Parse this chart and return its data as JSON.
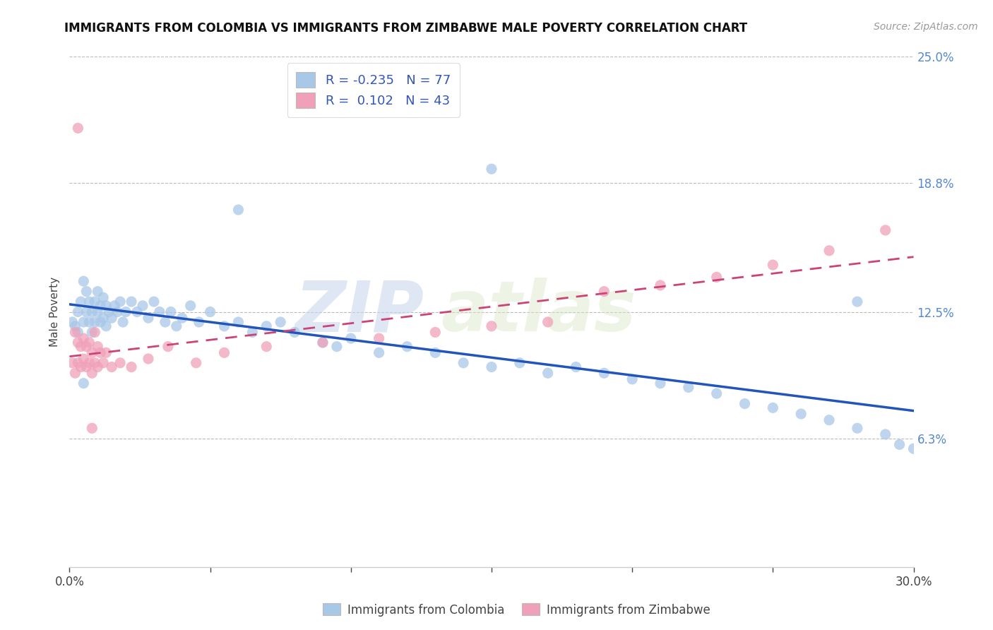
{
  "title": "IMMIGRANTS FROM COLOMBIA VS IMMIGRANTS FROM ZIMBABWE MALE POVERTY CORRELATION CHART",
  "source_text": "Source: ZipAtlas.com",
  "xlabel_colombia": "Immigrants from Colombia",
  "xlabel_zimbabwe": "Immigrants from Zimbabwe",
  "ylabel": "Male Poverty",
  "xlim": [
    0.0,
    0.3
  ],
  "ylim": [
    0.0,
    0.25
  ],
  "ytick_values": [
    0.0,
    0.063,
    0.125,
    0.188,
    0.25
  ],
  "ytick_labels": [
    "",
    "6.3%",
    "12.5%",
    "18.8%",
    "25.0%"
  ],
  "R_colombia": -0.235,
  "N_colombia": 77,
  "R_zimbabwe": 0.102,
  "N_zimbabwe": 43,
  "colombia_color": "#a8c8e8",
  "zimbabwe_color": "#f0a0b8",
  "colombia_line_color": "#2255bb",
  "zimbabwe_line_color": "#cc4477",
  "watermark_zip": "ZIP",
  "watermark_atlas": "atlas",
  "colombia_scatter_x": [
    0.001,
    0.002,
    0.003,
    0.003,
    0.004,
    0.005,
    0.005,
    0.006,
    0.006,
    0.007,
    0.007,
    0.008,
    0.008,
    0.009,
    0.009,
    0.01,
    0.01,
    0.011,
    0.011,
    0.012,
    0.012,
    0.013,
    0.013,
    0.014,
    0.015,
    0.016,
    0.017,
    0.018,
    0.019,
    0.02,
    0.022,
    0.024,
    0.026,
    0.028,
    0.03,
    0.032,
    0.034,
    0.036,
    0.038,
    0.04,
    0.043,
    0.046,
    0.05,
    0.055,
    0.06,
    0.065,
    0.07,
    0.075,
    0.08,
    0.09,
    0.095,
    0.1,
    0.11,
    0.12,
    0.13,
    0.14,
    0.15,
    0.16,
    0.17,
    0.18,
    0.19,
    0.2,
    0.21,
    0.22,
    0.23,
    0.24,
    0.25,
    0.26,
    0.27,
    0.28,
    0.29,
    0.295,
    0.3,
    0.15,
    0.06,
    0.28,
    0.005
  ],
  "colombia_scatter_y": [
    0.12,
    0.118,
    0.115,
    0.125,
    0.13,
    0.12,
    0.14,
    0.125,
    0.135,
    0.12,
    0.13,
    0.115,
    0.125,
    0.12,
    0.13,
    0.125,
    0.135,
    0.12,
    0.128,
    0.122,
    0.132,
    0.118,
    0.128,
    0.125,
    0.122,
    0.128,
    0.125,
    0.13,
    0.12,
    0.125,
    0.13,
    0.125,
    0.128,
    0.122,
    0.13,
    0.125,
    0.12,
    0.125,
    0.118,
    0.122,
    0.128,
    0.12,
    0.125,
    0.118,
    0.12,
    0.115,
    0.118,
    0.12,
    0.115,
    0.11,
    0.108,
    0.112,
    0.105,
    0.108,
    0.105,
    0.1,
    0.098,
    0.1,
    0.095,
    0.098,
    0.095,
    0.092,
    0.09,
    0.088,
    0.085,
    0.08,
    0.078,
    0.075,
    0.072,
    0.068,
    0.065,
    0.06,
    0.058,
    0.195,
    0.175,
    0.13,
    0.09
  ],
  "zimbabwe_scatter_x": [
    0.001,
    0.002,
    0.002,
    0.003,
    0.003,
    0.004,
    0.004,
    0.005,
    0.005,
    0.006,
    0.006,
    0.007,
    0.007,
    0.008,
    0.008,
    0.009,
    0.009,
    0.01,
    0.01,
    0.011,
    0.012,
    0.013,
    0.015,
    0.018,
    0.022,
    0.028,
    0.035,
    0.045,
    0.055,
    0.07,
    0.09,
    0.11,
    0.13,
    0.15,
    0.17,
    0.19,
    0.21,
    0.23,
    0.25,
    0.27,
    0.29,
    0.003,
    0.008
  ],
  "zimbabwe_scatter_y": [
    0.1,
    0.095,
    0.115,
    0.1,
    0.11,
    0.098,
    0.108,
    0.102,
    0.112,
    0.098,
    0.108,
    0.1,
    0.11,
    0.095,
    0.105,
    0.1,
    0.115,
    0.098,
    0.108,
    0.105,
    0.1,
    0.105,
    0.098,
    0.1,
    0.098,
    0.102,
    0.108,
    0.1,
    0.105,
    0.108,
    0.11,
    0.112,
    0.115,
    0.118,
    0.12,
    0.135,
    0.138,
    0.142,
    0.148,
    0.155,
    0.165,
    0.215,
    0.068
  ]
}
